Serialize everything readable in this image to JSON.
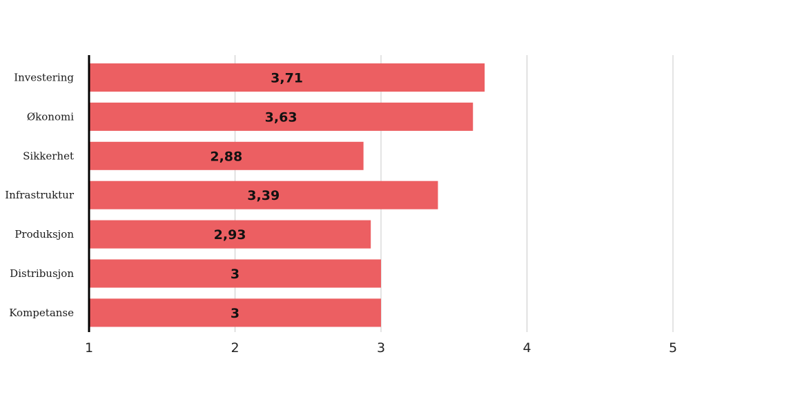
{
  "chart_data": {
    "type": "bar",
    "orientation": "horizontal",
    "categories": [
      "Investering",
      "Økonomi",
      "Sikkerhet",
      "Infrastruktur",
      "Produksjon",
      "Distribusjon",
      "Kompetanse"
    ],
    "values": [
      3.71,
      3.63,
      2.88,
      3.39,
      2.93,
      3,
      3
    ],
    "value_labels": [
      "3,71",
      "3,63",
      "2,88",
      "3,39",
      "2,93",
      "3",
      "3"
    ],
    "xticks": [
      "1",
      "2",
      "3",
      "4",
      "5"
    ],
    "xlim": [
      1,
      5
    ],
    "grid": true,
    "bar_color": "#ec5f62",
    "title": "",
    "xlabel": "",
    "ylabel": ""
  }
}
